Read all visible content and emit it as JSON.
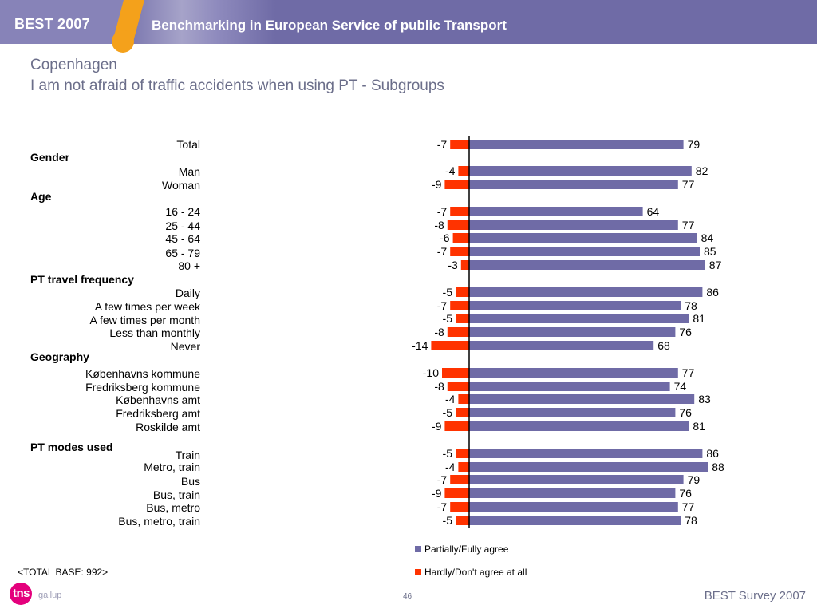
{
  "header": {
    "brand": "BEST 2007",
    "title": "Benchmarking in European Service of public Transport"
  },
  "page": {
    "title": "Copenhagen",
    "subtitle": "I am not afraid of traffic accidents when using PT - Subgroups"
  },
  "colors": {
    "positive": "#6f6ba6",
    "negative": "#ff3300",
    "accent": "#f4a11b",
    "title_text": "#6b6e8a"
  },
  "chart_data": {
    "type": "bar",
    "orientation": "horizontal",
    "diverging": true,
    "categories": [
      "Total",
      "Man",
      "Woman",
      "16 - 24",
      "25 - 44",
      "45 - 64",
      "65 - 79",
      "80 +",
      "Daily",
      "A few times per week",
      "A few times per month",
      "Less than monthly",
      "Never",
      "Københavns kommune",
      "Fredriksberg kommune",
      "Københavns amt",
      "Fredriksberg amt",
      "Roskilde amt",
      "Train",
      "Metro, train",
      "Bus",
      "Bus, train",
      "Bus, metro",
      "Bus, metro, train"
    ],
    "group_headers": [
      "Gender",
      "Age",
      "PT travel frequency",
      "Geography",
      "PT modes used"
    ],
    "series": [
      {
        "name": "Partially/Fully agree",
        "values": [
          79,
          82,
          77,
          64,
          77,
          84,
          85,
          87,
          86,
          78,
          81,
          76,
          68,
          77,
          74,
          83,
          76,
          81,
          86,
          88,
          79,
          76,
          77,
          78
        ]
      },
      {
        "name": "Hardly/Don't agree at all",
        "values": [
          -7,
          -4,
          -9,
          -7,
          -8,
          -6,
          -7,
          -3,
          -5,
          -7,
          -5,
          -8,
          -14,
          -10,
          -8,
          -4,
          -5,
          -9,
          -5,
          -4,
          -7,
          -9,
          -7,
          -5
        ]
      }
    ],
    "legend": [
      "Partially/Fully agree",
      "Hardly/Don't agree at all"
    ],
    "legend_position": "bottom-right"
  },
  "footer": {
    "base_note": "<TOTAL BASE: 992>",
    "logo_text": "tns",
    "logo_sub": "gallup",
    "page_number": "46",
    "survey": "BEST Survey 2007"
  }
}
